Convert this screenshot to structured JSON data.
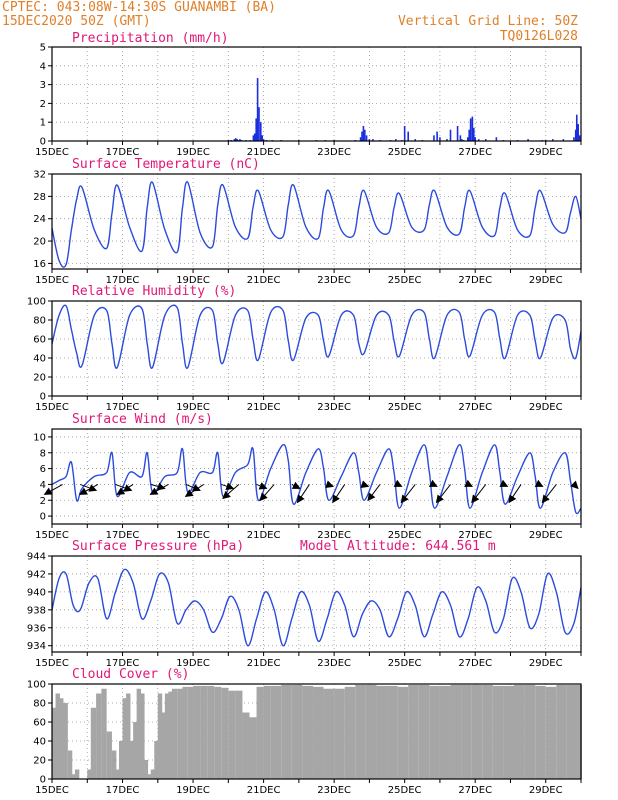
{
  "header": {
    "line1": "CPTEC:   043:08W-14:30S   GUANAMBI (BA)",
    "line2": "15DEC2020 50Z (GMT)",
    "grid_note": "Vertical Grid Line: 50Z",
    "code": "TQ0126L028"
  },
  "colors": {
    "header": "#e0802a",
    "title": "#e01878",
    "line": "#2b4bdc",
    "bar": "#1a2ee0",
    "cloud": "#a6a6a6",
    "wind": "#000000",
    "grid": "#999999"
  },
  "x_axis": {
    "start_day": 15,
    "end_day": 30,
    "labels": [
      {
        "day": 15,
        "text": "15DEC"
      },
      {
        "day": 17,
        "text": "17DEC"
      },
      {
        "day": 19,
        "text": "19DEC"
      },
      {
        "day": 21,
        "text": "21DEC"
      },
      {
        "day": 23,
        "text": "23DEC"
      },
      {
        "day": 25,
        "text": "25DEC"
      },
      {
        "day": 27,
        "text": "27DEC"
      },
      {
        "day": 29,
        "text": "29DEC"
      }
    ]
  },
  "chart_data": [
    {
      "type": "bar",
      "title": "Precipitation (mm/h)",
      "ylim": [
        0,
        5
      ],
      "yticks": [
        0,
        1,
        2,
        3,
        4,
        5
      ],
      "grid": true,
      "x": [
        20.0,
        20.08,
        20.17,
        20.21,
        20.25,
        20.29,
        20.33,
        20.38,
        20.5,
        20.62,
        20.71,
        20.75,
        20.79,
        20.83,
        20.87,
        20.92,
        20.96,
        21.0,
        21.08,
        21.25,
        21.5,
        22.0,
        22.5,
        22.75,
        23.0,
        23.6,
        23.75,
        23.79,
        23.83,
        23.87,
        23.92,
        24.0,
        24.1,
        24.3,
        24.6,
        24.75,
        24.92,
        25.0,
        25.1,
        25.3,
        25.5,
        25.83,
        25.92,
        26.0,
        26.2,
        26.3,
        26.5,
        26.58,
        26.62,
        26.67,
        26.79,
        26.83,
        26.87,
        26.92,
        26.96,
        27.0,
        27.1,
        27.3,
        27.6,
        27.8,
        28.2,
        28.5,
        28.9,
        29.0,
        29.2,
        29.5,
        29.8,
        29.85,
        29.88,
        29.92,
        29.96
      ],
      "values": [
        0.05,
        0.05,
        0.1,
        0.15,
        0.1,
        0.05,
        0.1,
        0.05,
        0.05,
        0.05,
        0.3,
        0.4,
        1.2,
        3.35,
        1.8,
        1.0,
        0.3,
        0.1,
        0.05,
        0.05,
        0.05,
        0.05,
        0.05,
        0.05,
        0.05,
        0.05,
        0.2,
        0.5,
        0.8,
        0.6,
        0.3,
        0.1,
        0.1,
        0.05,
        0.05,
        0.1,
        0.05,
        0.8,
        0.5,
        0.1,
        0.05,
        0.3,
        0.5,
        0.2,
        0.1,
        0.6,
        0.8,
        0.3,
        0.1,
        0.05,
        0.2,
        0.6,
        1.2,
        1.3,
        0.7,
        0.2,
        0.1,
        0.1,
        0.2,
        0.05,
        0.05,
        0.1,
        0.05,
        0.05,
        0.1,
        0.1,
        0.2,
        0.6,
        1.4,
        0.9,
        0.3
      ]
    },
    {
      "type": "line",
      "title": "Surface Temperature (nC)",
      "ylim": [
        15,
        32
      ],
      "yticks": [
        16,
        20,
        24,
        28,
        32
      ],
      "grid": true,
      "x": [
        15.0,
        15.2,
        15.4,
        15.55,
        15.7,
        15.85,
        16.2,
        16.55,
        16.7,
        16.85,
        17.2,
        17.55,
        17.7,
        17.85,
        18.2,
        18.55,
        18.7,
        18.85,
        19.2,
        19.55,
        19.7,
        19.85,
        20.2,
        20.55,
        20.7,
        20.85,
        21.2,
        21.55,
        21.7,
        21.85,
        22.2,
        22.55,
        22.7,
        22.85,
        23.2,
        23.55,
        23.7,
        23.85,
        24.2,
        24.55,
        24.7,
        24.85,
        25.2,
        25.55,
        25.7,
        25.85,
        26.2,
        26.55,
        26.7,
        26.85,
        27.2,
        27.55,
        27.7,
        27.85,
        28.2,
        28.55,
        28.7,
        28.85,
        29.2,
        29.55,
        29.7,
        29.85,
        30.0
      ],
      "values": [
        22.3,
        16.5,
        15.8,
        22.0,
        27.5,
        29.6,
        22.0,
        18.7,
        25.0,
        30.0,
        22.5,
        18.2,
        26.0,
        30.5,
        22.0,
        18.0,
        26.0,
        30.5,
        21.5,
        19.0,
        26.5,
        30.0,
        22.5,
        20.5,
        26.0,
        29.0,
        22.0,
        20.8,
        26.5,
        30.0,
        22.5,
        20.5,
        26.0,
        29.0,
        22.0,
        21.0,
        26.0,
        29.0,
        22.5,
        21.5,
        26.0,
        28.5,
        22.5,
        22.0,
        26.5,
        29.0,
        22.5,
        21.3,
        26.0,
        29.0,
        22.5,
        21.0,
        26.0,
        28.5,
        22.0,
        21.0,
        26.0,
        29.0,
        23.0,
        21.5,
        25.0,
        28.0,
        24.0
      ]
    },
    {
      "type": "line",
      "title": "Relative Humidity (%)",
      "ylim": [
        0,
        100
      ],
      "yticks": [
        0,
        20,
        40,
        60,
        80,
        100
      ],
      "grid": true,
      "x": [
        15.0,
        15.2,
        15.4,
        15.55,
        15.7,
        15.85,
        16.2,
        16.55,
        16.7,
        16.85,
        17.2,
        17.55,
        17.7,
        17.85,
        18.2,
        18.55,
        18.7,
        18.85,
        19.2,
        19.55,
        19.7,
        19.85,
        20.2,
        20.55,
        20.7,
        20.85,
        21.2,
        21.55,
        21.7,
        21.85,
        22.2,
        22.55,
        22.7,
        22.85,
        23.2,
        23.55,
        23.7,
        23.85,
        24.2,
        24.55,
        24.7,
        24.85,
        25.2,
        25.55,
        25.7,
        25.85,
        26.2,
        26.55,
        26.7,
        26.85,
        27.2,
        27.55,
        27.7,
        27.85,
        28.2,
        28.55,
        28.7,
        28.85,
        29.2,
        29.55,
        29.7,
        29.85,
        30.0
      ],
      "values": [
        55,
        85,
        95,
        70,
        45,
        32,
        85,
        90,
        55,
        30,
        85,
        92,
        55,
        30,
        85,
        93,
        55,
        30,
        85,
        90,
        55,
        35,
        85,
        90,
        60,
        38,
        88,
        90,
        58,
        38,
        82,
        85,
        58,
        42,
        85,
        85,
        55,
        45,
        85,
        85,
        58,
        42,
        85,
        88,
        60,
        40,
        85,
        88,
        60,
        42,
        85,
        88,
        60,
        40,
        85,
        85,
        58,
        40,
        82,
        80,
        50,
        40,
        68
      ]
    },
    {
      "type": "line",
      "title": "Surface Wind (m/s)",
      "ylim": [
        -1,
        11
      ],
      "yticks": [
        0,
        2,
        4,
        6,
        8,
        10
      ],
      "grid": true,
      "x": [
        15.0,
        15.2,
        15.4,
        15.55,
        15.7,
        15.85,
        16.2,
        16.55,
        16.7,
        16.85,
        17.2,
        17.55,
        17.7,
        17.85,
        18.2,
        18.55,
        18.7,
        18.85,
        19.2,
        19.55,
        19.7,
        19.85,
        20.2,
        20.55,
        20.7,
        20.85,
        21.2,
        21.55,
        21.7,
        21.85,
        22.2,
        22.55,
        22.7,
        22.85,
        23.2,
        23.55,
        23.7,
        23.85,
        24.2,
        24.55,
        24.7,
        24.85,
        25.2,
        25.55,
        25.7,
        25.85,
        26.2,
        26.55,
        26.7,
        26.85,
        27.2,
        27.55,
        27.7,
        27.85,
        28.2,
        28.55,
        28.7,
        28.85,
        29.2,
        29.55,
        29.7,
        29.85,
        30.0
      ],
      "values": [
        4.0,
        4.5,
        5.0,
        6.8,
        2.0,
        3.5,
        5.0,
        5.5,
        8.0,
        2.5,
        5.5,
        5.0,
        8.0,
        3.0,
        5.0,
        5.5,
        8.5,
        3.0,
        5.5,
        5.5,
        8.0,
        2.5,
        5.5,
        6.5,
        8.5,
        2.0,
        6.0,
        9.0,
        7.0,
        1.5,
        5.5,
        8.5,
        6.0,
        2.0,
        5.0,
        8.0,
        5.5,
        2.0,
        5.5,
        8.5,
        5.5,
        1.0,
        5.5,
        9.0,
        5.5,
        1.0,
        5.0,
        9.0,
        6.0,
        1.0,
        5.5,
        9.0,
        5.5,
        1.5,
        5.0,
        8.0,
        5.0,
        1.0,
        5.5,
        8.0,
        4.5,
        0.5,
        1.0
      ],
      "wind_vectors": [
        {
          "day": 15.3,
          "u": -4.5,
          "v": -2.5
        },
        {
          "day": 15.8,
          "u": 4.0,
          "v": -1.5
        },
        {
          "day": 16.3,
          "u": -4.5,
          "v": -2.5
        },
        {
          "day": 16.8,
          "u": 4.0,
          "v": -1.5
        },
        {
          "day": 17.3,
          "u": -4.0,
          "v": -2.5
        },
        {
          "day": 17.8,
          "u": 3.5,
          "v": -1.0
        },
        {
          "day": 18.3,
          "u": -4.5,
          "v": -2.5
        },
        {
          "day": 18.8,
          "u": 3.5,
          "v": -1.5
        },
        {
          "day": 19.3,
          "u": -4.5,
          "v": -3.0
        },
        {
          "day": 19.8,
          "u": 3.0,
          "v": -1.0
        },
        {
          "day": 20.3,
          "u": -4.0,
          "v": -3.5
        },
        {
          "day": 20.8,
          "u": 2.5,
          "v": -1.0
        },
        {
          "day": 21.3,
          "u": -3.5,
          "v": -4.0
        },
        {
          "day": 21.8,
          "u": 2.0,
          "v": -1.0
        },
        {
          "day": 22.3,
          "u": -3.0,
          "v": -4.5
        },
        {
          "day": 22.8,
          "u": 1.5,
          "v": -0.5
        },
        {
          "day": 23.3,
          "u": -3.0,
          "v": -4.5
        },
        {
          "day": 23.8,
          "u": 1.5,
          "v": -0.5
        },
        {
          "day": 24.3,
          "u": -3.0,
          "v": -4.0
        },
        {
          "day": 24.8,
          "u": 1.0,
          "v": -0.5
        },
        {
          "day": 25.3,
          "u": -3.5,
          "v": -4.5
        },
        {
          "day": 25.8,
          "u": 1.0,
          "v": -0.5
        },
        {
          "day": 26.3,
          "u": -3.5,
          "v": -4.5
        },
        {
          "day": 26.8,
          "u": 1.0,
          "v": -0.5
        },
        {
          "day": 27.3,
          "u": -3.5,
          "v": -4.5
        },
        {
          "day": 27.8,
          "u": 1.0,
          "v": -0.5
        },
        {
          "day": 28.3,
          "u": -3.0,
          "v": -4.5
        },
        {
          "day": 28.8,
          "u": 1.0,
          "v": -0.5
        },
        {
          "day": 29.3,
          "u": -3.5,
          "v": -4.5
        },
        {
          "day": 29.8,
          "u": 1.0,
          "v": -1.0
        }
      ]
    },
    {
      "type": "line",
      "title": "Surface Pressure (hPa)",
      "annotation": "Model Altitude: 644.561  m",
      "ylim": [
        933.3,
        944
      ],
      "yticks": [
        934,
        936,
        938,
        940,
        942,
        944
      ],
      "grid": true,
      "x": [
        15.0,
        15.2,
        15.4,
        15.6,
        15.8,
        16.05,
        16.3,
        16.55,
        16.8,
        17.05,
        17.3,
        17.55,
        17.8,
        18.05,
        18.3,
        18.55,
        18.8,
        19.05,
        19.3,
        19.55,
        19.8,
        20.05,
        20.3,
        20.55,
        20.8,
        21.05,
        21.3,
        21.55,
        21.8,
        22.05,
        22.3,
        22.55,
        22.8,
        23.05,
        23.3,
        23.55,
        23.8,
        24.05,
        24.3,
        24.55,
        24.8,
        25.05,
        25.3,
        25.55,
        25.8,
        26.05,
        26.3,
        26.55,
        26.8,
        27.05,
        27.3,
        27.55,
        27.8,
        28.05,
        28.3,
        28.55,
        28.8,
        29.05,
        29.3,
        29.55,
        29.8,
        30.0
      ],
      "values": [
        938.0,
        941.5,
        942.0,
        938.5,
        938.0,
        941.0,
        941.5,
        937.0,
        940.0,
        942.5,
        941.0,
        937.0,
        939.0,
        942.0,
        941.0,
        936.5,
        938.0,
        939.0,
        938.0,
        935.5,
        937.0,
        939.5,
        938.0,
        934.0,
        937.0,
        940.0,
        938.0,
        934.0,
        937.0,
        940.0,
        938.5,
        934.5,
        937.0,
        940.0,
        938.5,
        935.0,
        937.5,
        939.0,
        938.0,
        935.0,
        937.0,
        940.0,
        938.5,
        935.0,
        937.5,
        940.0,
        938.5,
        935.0,
        937.0,
        940.5,
        939.0,
        935.5,
        937.0,
        941.5,
        940.0,
        936.0,
        937.5,
        942.0,
        940.0,
        935.5,
        936.5,
        940.5
      ]
    },
    {
      "type": "bar",
      "title": "Cloud Cover (%)",
      "ylim": [
        0,
        100
      ],
      "yticks": [
        0,
        20,
        40,
        60,
        80,
        100
      ],
      "grid": true,
      "x": [
        15.0,
        15.1,
        15.2,
        15.3,
        15.45,
        15.55,
        15.65,
        15.75,
        15.9,
        16.0,
        16.1,
        16.25,
        16.4,
        16.55,
        16.7,
        16.8,
        16.9,
        17.0,
        17.1,
        17.2,
        17.3,
        17.4,
        17.5,
        17.6,
        17.7,
        17.8,
        17.9,
        18.0,
        18.1,
        18.2,
        18.3,
        18.4,
        18.55,
        18.7,
        18.85,
        19.0,
        19.2,
        19.4,
        19.6,
        19.8,
        20.0,
        20.2,
        20.4,
        20.6,
        20.8,
        21.0,
        21.2,
        21.5,
        21.8,
        22.1,
        22.4,
        22.7,
        23.0,
        23.3,
        23.6,
        23.9,
        24.2,
        24.5,
        24.8,
        25.1,
        25.4,
        25.7,
        26.0,
        26.3,
        26.6,
        26.9,
        27.2,
        27.5,
        27.8,
        28.1,
        28.4,
        28.7,
        29.0,
        29.3,
        29.6,
        29.9
      ],
      "values": [
        75,
        90,
        85,
        80,
        30,
        5,
        10,
        0,
        0,
        10,
        75,
        90,
        95,
        50,
        30,
        10,
        40,
        85,
        90,
        40,
        60,
        95,
        90,
        20,
        5,
        10,
        40,
        90,
        70,
        90,
        92,
        95,
        95,
        97,
        97,
        98,
        98,
        98,
        97,
        96,
        93,
        93,
        70,
        65,
        97,
        98,
        98,
        99,
        99,
        98,
        97,
        95,
        95,
        97,
        99,
        99,
        98,
        98,
        97,
        99,
        99,
        98,
        98,
        99,
        99,
        99,
        99,
        98,
        98,
        99,
        99,
        98,
        97,
        99,
        99,
        99
      ]
    }
  ]
}
